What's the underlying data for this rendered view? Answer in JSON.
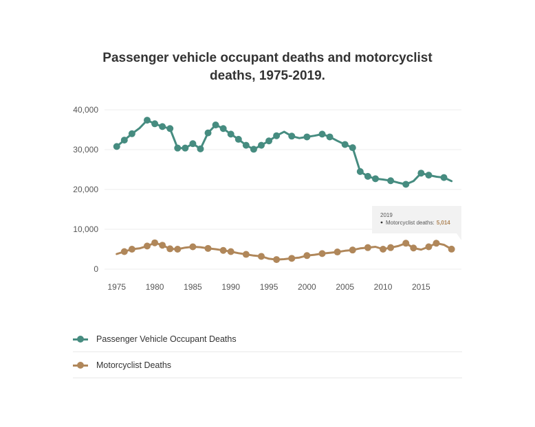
{
  "chart_data": {
    "type": "line",
    "title": "Passenger vehicle occupant deaths and motorcyclist deaths, 1975-2019.",
    "xlabel": "",
    "ylabel": "",
    "x": [
      1975,
      1976,
      1977,
      1978,
      1979,
      1980,
      1981,
      1982,
      1983,
      1984,
      1985,
      1986,
      1987,
      1988,
      1989,
      1990,
      1991,
      1992,
      1993,
      1994,
      1995,
      1996,
      1997,
      1998,
      1999,
      2000,
      2001,
      2002,
      2003,
      2004,
      2005,
      2006,
      2007,
      2008,
      2009,
      2010,
      2011,
      2012,
      2013,
      2014,
      2015,
      2016,
      2017,
      2018,
      2019
    ],
    "xlim": [
      1974.3,
      2020.3
    ],
    "ylim": [
      0,
      40000
    ],
    "y_ticks": [
      {
        "value": 0,
        "label": "0"
      },
      {
        "value": 10000,
        "label": "10,000"
      },
      {
        "value": 20000,
        "label": "20,000"
      },
      {
        "value": 30000,
        "label": "30,000"
      },
      {
        "value": 40000,
        "label": "40,000"
      }
    ],
    "x_ticks": [
      {
        "value": 1975,
        "label": "1975"
      },
      {
        "value": 1980,
        "label": "1980"
      },
      {
        "value": 1985,
        "label": "1985"
      },
      {
        "value": 1990,
        "label": "1990"
      },
      {
        "value": 1995,
        "label": "1995"
      },
      {
        "value": 2000,
        "label": "2000"
      },
      {
        "value": 2005,
        "label": "2005"
      },
      {
        "value": 2010,
        "label": "2010"
      },
      {
        "value": 2015,
        "label": "2015"
      }
    ],
    "grid": true,
    "legend_position": "bottom",
    "series": [
      {
        "name": "Passenger Vehicle Occupant Deaths",
        "color": "#468c80",
        "values": [
          30800,
          32400,
          34000,
          35400,
          37400,
          36500,
          35800,
          35300,
          30400,
          30400,
          31500,
          30200,
          34200,
          36200,
          35300,
          33900,
          32600,
          31100,
          30100,
          31100,
          32200,
          33500,
          34500,
          33400,
          32900,
          33200,
          33500,
          33900,
          33200,
          32200,
          31300,
          30500,
          24500,
          23300,
          22700,
          22500,
          22200,
          21700,
          21300,
          22100,
          24100,
          23600,
          23200,
          23000,
          22100
        ]
      },
      {
        "name": "Motorcyclist Deaths",
        "color": "#b0875a",
        "values": [
          3800,
          4400,
          5000,
          5200,
          5800,
          6600,
          6000,
          5100,
          5000,
          5400,
          5600,
          5500,
          5200,
          5000,
          4700,
          4400,
          4000,
          3700,
          3400,
          3200,
          2600,
          2400,
          2500,
          2700,
          2900,
          3400,
          3600,
          3900,
          4100,
          4300,
          4600,
          4800,
          5200,
          5400,
          5600,
          5000,
          5400,
          5800,
          6500,
          5300,
          4900,
          5600,
          6500,
          6100,
          5014
        ]
      }
    ],
    "markers": [
      {
        "series": 0,
        "x": [
          1975,
          1976,
          1977,
          1979,
          1980,
          1981,
          1982,
          1983,
          1984,
          1985,
          1986,
          1987,
          1988,
          1989,
          1990,
          1991,
          1992,
          1993,
          1994,
          1995,
          1996,
          1998,
          2000,
          2002,
          2003,
          2005,
          2006,
          2007,
          2008,
          2009,
          2011,
          2013,
          2015,
          2016,
          2018
        ]
      },
      {
        "series": 1,
        "x": [
          1976,
          1977,
          1979,
          1980,
          1981,
          1982,
          1983,
          1985,
          1987,
          1989,
          1990,
          1992,
          1994,
          1996,
          1998,
          2000,
          2002,
          2004,
          2006,
          2008,
          2010,
          2011,
          2013,
          2014,
          2016,
          2017,
          2019
        ]
      }
    ],
    "tooltip": {
      "year": "2019",
      "label": "Motorcyclist deaths:",
      "value": "5,014"
    }
  },
  "legend": {
    "items": [
      {
        "label": "Passenger Vehicle Occupant Deaths",
        "color": "#468c80"
      },
      {
        "label": "Motorcyclist Deaths",
        "color": "#b0875a"
      }
    ]
  }
}
